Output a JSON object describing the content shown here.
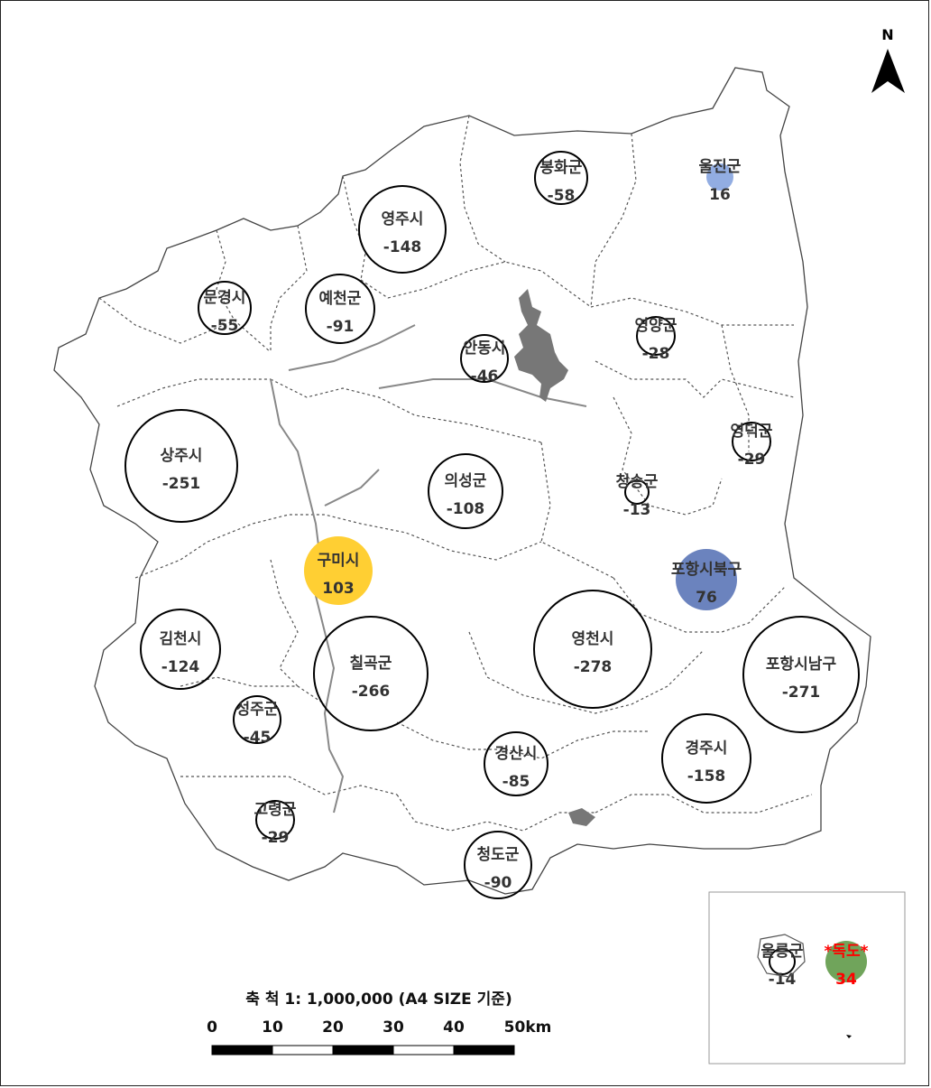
{
  "north_label": "N",
  "colors": {
    "negative_fill": "#ffffff",
    "negative_stroke": "#000000",
    "gumi": "#FFCF33",
    "pohang_buk": "#6B83BE",
    "uljin": "#92ADE2",
    "dokdo": "#70A45B",
    "dokdo_text": "#ff0000",
    "label_text": "#333333",
    "boundary": "#555555",
    "water": "#777777"
  },
  "regions": [
    {
      "name": "봉화군",
      "value": "-58"
    },
    {
      "name": "울진군",
      "value": "16"
    },
    {
      "name": "영주시",
      "value": "-148"
    },
    {
      "name": "문경시",
      "value": "-55"
    },
    {
      "name": "예천군",
      "value": "-91"
    },
    {
      "name": "안동시",
      "value": "-46"
    },
    {
      "name": "영양군",
      "value": "-28"
    },
    {
      "name": "영덕군",
      "value": "-29"
    },
    {
      "name": "상주시",
      "value": "-251"
    },
    {
      "name": "의성군",
      "value": "-108"
    },
    {
      "name": "청송군",
      "value": "-13"
    },
    {
      "name": "구미시",
      "value": "103"
    },
    {
      "name": "포항시북구",
      "value": "76"
    },
    {
      "name": "김천시",
      "value": "-124"
    },
    {
      "name": "칠곡군",
      "value": "-266"
    },
    {
      "name": "영천시",
      "value": "-278"
    },
    {
      "name": "포항시남구",
      "value": "-271"
    },
    {
      "name": "성주군",
      "value": "-45"
    },
    {
      "name": "경산시",
      "value": "-85"
    },
    {
      "name": "경주시",
      "value": "-158"
    },
    {
      "name": "고령군",
      "value": "-29"
    },
    {
      "name": "청도군",
      "value": "-90"
    },
    {
      "name": "울릉군",
      "value": "-14"
    },
    {
      "name": "*독도*",
      "value": "34"
    }
  ],
  "scale_bar": {
    "title": "축 척 1: 1,000,000 (A4 SIZE 기준)",
    "ticks": [
      "0",
      "10",
      "20",
      "30",
      "40",
      "50km"
    ]
  }
}
